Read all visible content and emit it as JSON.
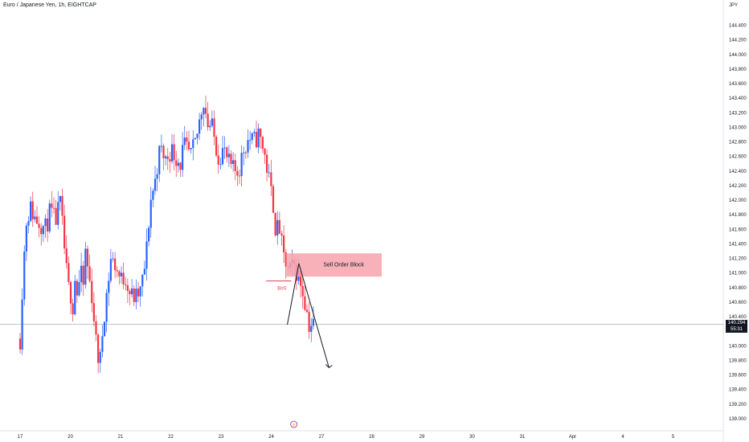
{
  "header": {
    "title": "Euro / Japanese Yen, 1h, EIGHTCAP",
    "currency": "JPY"
  },
  "chart_data": {
    "type": "candlestick",
    "title": "Euro / Japanese Yen, 1h, EIGHTCAP",
    "y_axis": {
      "side": "right",
      "unit": "JPY",
      "range": [
        138.9,
        144.55
      ],
      "ticks": [
        "144.400",
        "144.200",
        "144.000",
        "143.800",
        "143.600",
        "143.400",
        "143.200",
        "143.000",
        "142.800",
        "142.600",
        "142.400",
        "142.200",
        "142.000",
        "141.800",
        "141.600",
        "141.400",
        "141.200",
        "141.000",
        "140.800",
        "140.600",
        "140.400",
        "140.200",
        "140.000",
        "139.800",
        "139.600",
        "139.400",
        "139.200",
        "139.000"
      ]
    },
    "x_axis": {
      "ticks": [
        "17",
        "20",
        "21",
        "22",
        "23",
        "24",
        "27",
        "28",
        "29",
        "30",
        "31",
        "Apr",
        "4",
        "5"
      ],
      "day_index": [
        0,
        1,
        2,
        3,
        4,
        5,
        6,
        7,
        8,
        9,
        10,
        11,
        12,
        13
      ],
      "range": [
        -0.4,
        14.0
      ]
    },
    "current_price": {
      "price": "140.294",
      "countdown": "55:31",
      "value": 140.294
    },
    "series": [
      {
        "name": "EURJPY",
        "anchors": [
          [
            0.0,
            140.1
          ],
          [
            0.05,
            140.9
          ],
          [
            0.12,
            141.7
          ],
          [
            0.2,
            141.9
          ],
          [
            0.3,
            141.75
          ],
          [
            0.4,
            141.7
          ],
          [
            0.5,
            141.6
          ],
          [
            0.6,
            141.85
          ],
          [
            0.7,
            141.7
          ],
          [
            0.8,
            141.95
          ],
          [
            0.9,
            141.2
          ],
          [
            0.95,
            140.8
          ],
          [
            1.0,
            140.75
          ],
          [
            1.05,
            140.55
          ],
          [
            1.1,
            141.0
          ],
          [
            1.15,
            140.6
          ],
          [
            1.2,
            141.1
          ],
          [
            1.25,
            140.7
          ],
          [
            1.3,
            141.3
          ],
          [
            1.35,
            141.05
          ],
          [
            1.4,
            140.8
          ],
          [
            1.45,
            140.6
          ],
          [
            1.5,
            140.1
          ],
          [
            1.55,
            139.85
          ],
          [
            1.6,
            139.8
          ],
          [
            1.65,
            140.3
          ],
          [
            1.7,
            140.6
          ],
          [
            1.75,
            140.85
          ],
          [
            1.8,
            141.2
          ],
          [
            1.9,
            141.1
          ],
          [
            2.0,
            140.9
          ],
          [
            2.1,
            140.95
          ],
          [
            2.2,
            140.7
          ],
          [
            2.3,
            140.65
          ],
          [
            2.4,
            140.75
          ],
          [
            2.5,
            141.15
          ],
          [
            2.55,
            141.6
          ],
          [
            2.6,
            142.0
          ],
          [
            2.7,
            142.3
          ],
          [
            2.75,
            142.6
          ],
          [
            2.8,
            142.7
          ],
          [
            2.9,
            142.55
          ],
          [
            3.0,
            142.7
          ],
          [
            3.1,
            142.6
          ],
          [
            3.2,
            142.5
          ],
          [
            3.25,
            142.75
          ],
          [
            3.3,
            142.7
          ],
          [
            3.4,
            142.6
          ],
          [
            3.5,
            142.8
          ],
          [
            3.55,
            143.0
          ],
          [
            3.6,
            143.2
          ],
          [
            3.65,
            143.4
          ],
          [
            3.7,
            143.2
          ],
          [
            3.75,
            143.0
          ],
          [
            3.8,
            143.05
          ],
          [
            3.85,
            142.9
          ],
          [
            3.9,
            142.75
          ],
          [
            3.95,
            142.6
          ],
          [
            4.05,
            142.7
          ],
          [
            4.15,
            142.5
          ],
          [
            4.25,
            142.4
          ],
          [
            4.35,
            142.4
          ],
          [
            4.45,
            142.7
          ],
          [
            4.55,
            142.85
          ],
          [
            4.65,
            142.8
          ],
          [
            4.75,
            142.9
          ],
          [
            4.85,
            142.7
          ],
          [
            4.95,
            142.3
          ],
          [
            5.05,
            141.9
          ],
          [
            5.1,
            141.5
          ],
          [
            5.15,
            141.7
          ],
          [
            5.2,
            141.4
          ],
          [
            5.25,
            141.2
          ],
          [
            5.35,
            141.0
          ],
          [
            5.45,
            141.1
          ],
          [
            5.55,
            140.95
          ],
          [
            5.65,
            140.7
          ],
          [
            5.75,
            140.3
          ],
          [
            5.85,
            140.29
          ]
        ]
      }
    ],
    "annotations": [
      {
        "type": "zone",
        "label": "Sell Order Block",
        "color": "#f7a3ab",
        "y_top": 141.27,
        "y_bottom": 140.95,
        "x_start": 5.3,
        "x_end": 7.2
      },
      {
        "type": "level",
        "label": "BoS",
        "color": "#e8394a",
        "y": 140.89,
        "x_start": 4.9,
        "x_end": 5.4
      },
      {
        "type": "projection",
        "color": "#131722",
        "points": [
          [
            5.32,
            140.29
          ],
          [
            5.55,
            141.13
          ],
          [
            6.15,
            139.7
          ]
        ]
      }
    ],
    "event_marker": {
      "symbol": "⚡",
      "color": "#9c27b0",
      "x": 5.45
    },
    "grid": false,
    "colors": {
      "up": "#2962ff",
      "down": "#f23645",
      "axis_text": "#131722",
      "background": "#ffffff",
      "price_line": "#9aa0ab"
    }
  }
}
